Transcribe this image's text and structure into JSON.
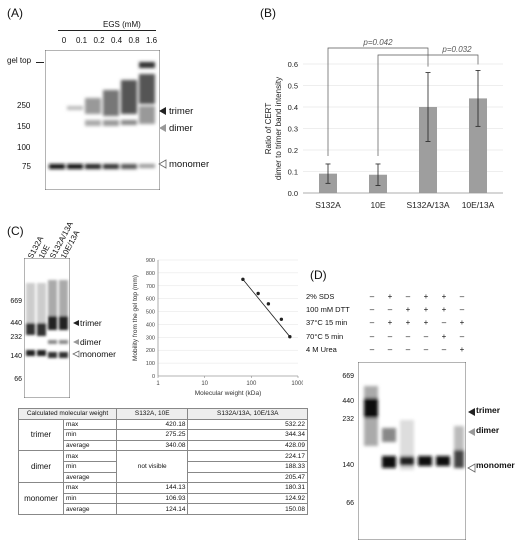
{
  "panel_a": {
    "label": "(A)",
    "conc_title": "EGS (mM)",
    "concentrations": [
      "0",
      "0.1",
      "0.2",
      "0.4",
      "0.8",
      "1.6"
    ],
    "gel_top": "gel top",
    "markers": [
      "250",
      "150",
      "100",
      "75"
    ],
    "bands": [
      "trimer",
      "dimer",
      "monomer"
    ]
  },
  "panel_b": {
    "label": "(B)",
    "p1": "p=0.042",
    "p2": "p=0.032"
  },
  "chart_data": [
    {
      "type": "bar",
      "categories": [
        "S132A",
        "10E",
        "S132A/13A",
        "10E/13A"
      ],
      "values": [
        0.09,
        0.085,
        0.4,
        0.44
      ],
      "errors": [
        0.045,
        0.05,
        0.16,
        0.13
      ],
      "ylabel": "Ratio of CERT dimer to trimer band intensity",
      "ylim": [
        0,
        0.6
      ],
      "yticks": [
        "0.0",
        "0.1",
        "0.2",
        "0.3",
        "0.4",
        "0.5",
        "0.6"
      ],
      "grid": true,
      "color": "#9e9e9e"
    },
    {
      "type": "scatter",
      "x": [
        66,
        140,
        232,
        440,
        669
      ],
      "y": [
        750,
        640,
        560,
        440,
        305
      ],
      "xlabel": "Molecular weight (kDa)",
      "ylabel": "Mobility from the gel top (mm)",
      "xscale": "log",
      "xlim": [
        1,
        1000
      ],
      "ylim": [
        0,
        900
      ],
      "xticks": [
        "1",
        "10",
        "100",
        "1000"
      ],
      "yticks": [
        "0",
        "100",
        "200",
        "300",
        "400",
        "500",
        "600",
        "700",
        "800",
        "900"
      ],
      "trendline": true
    }
  ],
  "panel_c": {
    "label": "(C)",
    "lanes": [
      "S132A",
      "10E",
      "S132A/13A",
      "10E/13A"
    ],
    "markers": [
      "669",
      "440",
      "232",
      "140",
      "66"
    ],
    "bands": [
      "trimer",
      "dimer",
      "monomer"
    ],
    "table": {
      "headers": [
        "Calculated molecular weight",
        "S132A, 10E",
        "S132A/13A, 10E/13A"
      ],
      "groups": [
        {
          "name": "trimer",
          "rows": [
            [
              "max",
              "420.18",
              "532.22"
            ],
            [
              "min",
              "275.25",
              "344.34"
            ],
            [
              "average",
              "340.08",
              "428.09"
            ]
          ]
        },
        {
          "name": "dimer",
          "rows": [
            [
              "max",
              "",
              "224.17"
            ],
            [
              "min",
              "not visible",
              "188.33"
            ],
            [
              "average",
              "",
              "205.47"
            ]
          ]
        },
        {
          "name": "monomer",
          "rows": [
            [
              "max",
              "144.13",
              "180.31"
            ],
            [
              "min",
              "106.93",
              "124.92"
            ],
            [
              "average",
              "124.14",
              "150.08"
            ]
          ]
        }
      ]
    }
  },
  "panel_d": {
    "label": "(D)",
    "conditions": [
      {
        "name": "2% SDS",
        "signs": [
          "–",
          "+",
          "–",
          "+",
          "+",
          "–"
        ]
      },
      {
        "name": "100 mM DTT",
        "signs": [
          "–",
          "–",
          "+",
          "+",
          "+",
          "–"
        ]
      },
      {
        "name": "37°C 15 min",
        "signs": [
          "–",
          "+",
          "+",
          "+",
          "–",
          "+"
        ]
      },
      {
        "name": "70°C 5 min",
        "signs": [
          "–",
          "–",
          "–",
          "–",
          "+",
          "–"
        ]
      },
      {
        "name": "4 M Urea",
        "signs": [
          "–",
          "–",
          "–",
          "–",
          "–",
          "+"
        ]
      }
    ],
    "markers": [
      "669",
      "440",
      "232",
      "140",
      "66"
    ],
    "bands": [
      "trimer",
      "dimer",
      "monomer"
    ]
  }
}
